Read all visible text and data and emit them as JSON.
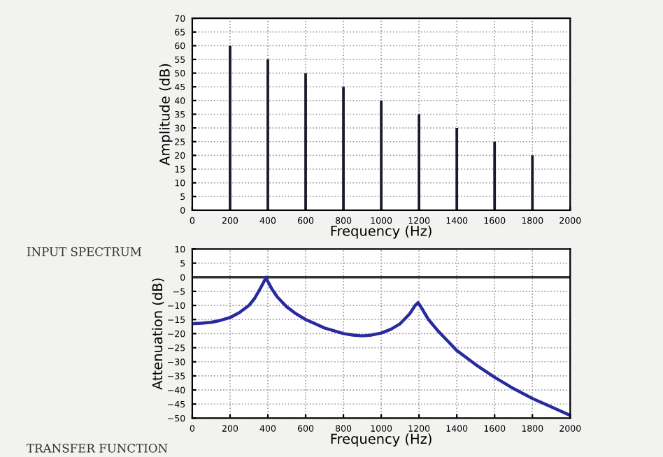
{
  "chart_data": [
    {
      "type": "bar",
      "x": [
        200,
        400,
        600,
        800,
        1000,
        1200,
        1400,
        1600,
        1800
      ],
      "values": [
        60,
        55,
        50,
        45,
        40,
        35,
        30,
        25,
        20
      ],
      "color": "#1a1a2a",
      "xlabel": "Frequency (Hz)",
      "ylabel": "Amplitude (dB)",
      "xlim": [
        0,
        2000
      ],
      "xticks": [
        0,
        200,
        400,
        600,
        800,
        1000,
        1200,
        1400,
        1600,
        1800,
        2000
      ],
      "ylim": [
        0,
        70
      ],
      "yticks": [
        0,
        5,
        10,
        15,
        20,
        25,
        30,
        35,
        40,
        45,
        50,
        55,
        60,
        65,
        70
      ],
      "grid": true,
      "annotations": [
        "INPUT SPECTRUM"
      ]
    },
    {
      "type": "line",
      "series": [
        {
          "color": "#2a2aa0",
          "x": [
            0,
            50,
            100,
            150,
            200,
            250,
            300,
            330,
            360,
            380,
            390,
            400,
            420,
            450,
            500,
            550,
            600,
            650,
            700,
            750,
            800,
            850,
            900,
            950,
            1000,
            1050,
            1100,
            1150,
            1180,
            1195,
            1210,
            1250,
            1300,
            1350,
            1400,
            1500,
            1600,
            1700,
            1800,
            1900,
            2000
          ],
          "values": [
            -16.5,
            -16.3,
            -16,
            -15.3,
            -14.3,
            -12.5,
            -10,
            -7.5,
            -4,
            -1.5,
            0,
            -1.5,
            -4,
            -7,
            -10.5,
            -13,
            -15,
            -16.5,
            -18,
            -19,
            -20,
            -20.5,
            -20.8,
            -20.5,
            -19.8,
            -18.5,
            -16.5,
            -13,
            -10,
            -9,
            -10.5,
            -15,
            -19,
            -22.5,
            -26,
            -31,
            -35.5,
            -39.5,
            -43,
            -46,
            -49
          ]
        }
      ],
      "xlabel": "Frequency (Hz)",
      "ylabel": "Attenuation (dB)",
      "xlim": [
        0,
        2000
      ],
      "xticks": [
        0,
        200,
        400,
        600,
        800,
        1000,
        1200,
        1400,
        1600,
        1800,
        2000
      ],
      "ylim": [
        -50,
        10
      ],
      "yticks": [
        -50,
        -45,
        -40,
        -35,
        -30,
        -25,
        -20,
        -15,
        -10,
        -5,
        0,
        5,
        10
      ],
      "grid": true,
      "ref_lines": [
        {
          "axis": "y",
          "value": 0,
          "color": "#333333"
        }
      ],
      "annotations": [
        "TRANSFER FUNCTION"
      ]
    }
  ]
}
